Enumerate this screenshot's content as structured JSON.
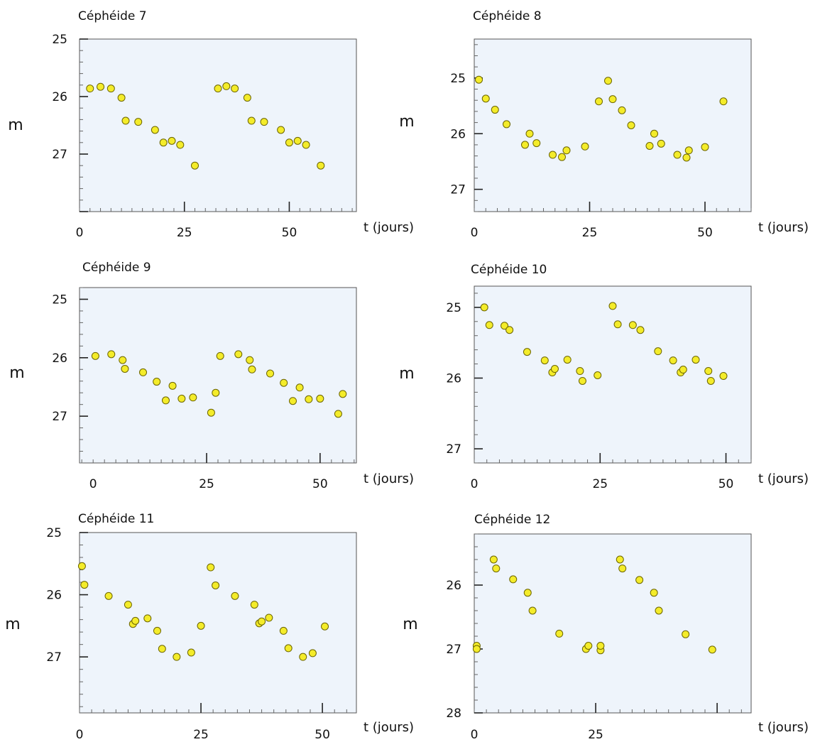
{
  "chart_data": [
    {
      "type": "scatter",
      "title": "Céphéide 7",
      "xlabel": "t (jours)",
      "ylabel": "m",
      "xlim": [
        0,
        66
      ],
      "ylim": [
        25,
        28
      ],
      "y_inverted": true,
      "x_ticks": [
        0,
        25,
        50
      ],
      "y_ticks": [
        25,
        26,
        27
      ],
      "grid": false,
      "points": [
        [
          2.5,
          25.86
        ],
        [
          5,
          25.83
        ],
        [
          7.5,
          25.86
        ],
        [
          10,
          26.02
        ],
        [
          11,
          26.42
        ],
        [
          14,
          26.44
        ],
        [
          18,
          26.58
        ],
        [
          20,
          26.8
        ],
        [
          22,
          26.77
        ],
        [
          24,
          26.84
        ],
        [
          27.5,
          27.2
        ],
        [
          33,
          25.86
        ],
        [
          35,
          25.82
        ],
        [
          37,
          25.86
        ],
        [
          40,
          26.02
        ],
        [
          41,
          26.42
        ],
        [
          44,
          26.44
        ],
        [
          48,
          26.58
        ],
        [
          50,
          26.8
        ],
        [
          52,
          26.77
        ],
        [
          54,
          26.84
        ],
        [
          57.5,
          27.2
        ]
      ]
    },
    {
      "type": "scatter",
      "title": "Céphéide 8",
      "xlabel": "t (jours)",
      "ylabel": "m",
      "xlim": [
        0,
        60
      ],
      "ylim": [
        24.3,
        27.4
      ],
      "y_inverted": true,
      "x_ticks": [
        0,
        25,
        50
      ],
      "y_ticks": [
        25,
        26,
        27
      ],
      "grid": false,
      "points": [
        [
          1,
          25.03
        ],
        [
          2.5,
          25.37
        ],
        [
          4.5,
          25.57
        ],
        [
          7,
          25.83
        ],
        [
          11,
          26.2
        ],
        [
          12,
          26.0
        ],
        [
          13.5,
          26.17
        ],
        [
          17,
          26.38
        ],
        [
          19,
          26.42
        ],
        [
          20,
          26.3
        ],
        [
          24,
          26.23
        ],
        [
          27,
          25.42
        ],
        [
          29,
          25.05
        ],
        [
          30,
          25.38
        ],
        [
          32,
          25.58
        ],
        [
          34,
          25.85
        ],
        [
          38,
          26.22
        ],
        [
          39,
          26.0
        ],
        [
          40.5,
          26.18
        ],
        [
          44,
          26.38
        ],
        [
          46,
          26.43
        ],
        [
          46.5,
          26.3
        ],
        [
          50,
          26.24
        ],
        [
          54,
          25.42
        ]
      ]
    },
    {
      "type": "scatter",
      "title": "Céphéide 9",
      "xlabel": "t (jours)",
      "ylabel": "m",
      "xlim": [
        -3,
        58
      ],
      "ylim": [
        24.8,
        27.8
      ],
      "y_inverted": true,
      "x_ticks": [
        0,
        25,
        50
      ],
      "y_ticks": [
        25,
        26,
        27
      ],
      "grid": false,
      "points": [
        [
          0.5,
          25.97
        ],
        [
          4,
          25.94
        ],
        [
          6.5,
          26.04
        ],
        [
          7,
          26.19
        ],
        [
          11,
          26.25
        ],
        [
          14,
          26.41
        ],
        [
          16,
          26.73
        ],
        [
          17.5,
          26.48
        ],
        [
          19.5,
          26.7
        ],
        [
          22,
          26.68
        ],
        [
          26,
          26.94
        ],
        [
          27,
          26.6
        ],
        [
          28,
          25.97
        ],
        [
          32,
          25.94
        ],
        [
          34.5,
          26.04
        ],
        [
          35,
          26.2
        ],
        [
          39,
          26.27
        ],
        [
          42,
          26.43
        ],
        [
          44,
          26.74
        ],
        [
          45.5,
          26.51
        ],
        [
          47.5,
          26.71
        ],
        [
          50,
          26.7
        ],
        [
          54,
          26.96
        ],
        [
          55,
          26.62
        ]
      ]
    },
    {
      "type": "scatter",
      "title": "Céphéide 10",
      "xlabel": "t (jours)",
      "ylabel": "m",
      "xlim": [
        0,
        55
      ],
      "ylim": [
        24.7,
        27.2
      ],
      "y_inverted": true,
      "x_ticks": [
        0,
        25,
        50
      ],
      "y_ticks": [
        25,
        26,
        27
      ],
      "grid": false,
      "points": [
        [
          2,
          25.0
        ],
        [
          3,
          25.25
        ],
        [
          6,
          25.26
        ],
        [
          7,
          25.32
        ],
        [
          10.5,
          25.63
        ],
        [
          14,
          25.75
        ],
        [
          15.5,
          25.92
        ],
        [
          16,
          25.87
        ],
        [
          18.5,
          25.74
        ],
        [
          21,
          25.9
        ],
        [
          21.5,
          26.04
        ],
        [
          24.5,
          25.96
        ],
        [
          27.5,
          24.98
        ],
        [
          28.5,
          25.24
        ],
        [
          31.5,
          25.25
        ],
        [
          33,
          25.32
        ],
        [
          36.5,
          25.62
        ],
        [
          39.5,
          25.75
        ],
        [
          41,
          25.92
        ],
        [
          41.5,
          25.88
        ],
        [
          44,
          25.74
        ],
        [
          46.5,
          25.9
        ],
        [
          47,
          26.04
        ],
        [
          49.5,
          25.97
        ]
      ]
    },
    {
      "type": "scatter",
      "title": "Céphéide 11",
      "xlabel": "t (jours)",
      "ylabel": "m",
      "xlim": [
        0,
        57
      ],
      "ylim": [
        25,
        27.9
      ],
      "y_inverted": true,
      "x_ticks": [
        0,
        25,
        50
      ],
      "y_ticks": [
        25,
        26,
        27
      ],
      "grid": false,
      "points": [
        [
          0.5,
          25.54
        ],
        [
          1,
          25.84
        ],
        [
          6,
          26.02
        ],
        [
          10,
          26.16
        ],
        [
          11,
          26.47
        ],
        [
          11.5,
          26.42
        ],
        [
          14,
          26.38
        ],
        [
          16,
          26.58
        ],
        [
          17,
          26.87
        ],
        [
          20,
          27.0
        ],
        [
          23,
          26.93
        ],
        [
          25,
          26.5
        ],
        [
          27,
          25.56
        ],
        [
          28,
          25.85
        ],
        [
          32,
          26.02
        ],
        [
          36,
          26.16
        ],
        [
          37,
          26.46
        ],
        [
          37.5,
          26.43
        ],
        [
          39,
          26.37
        ],
        [
          42,
          26.58
        ],
        [
          43,
          26.86
        ],
        [
          46,
          27.0
        ],
        [
          48,
          26.94
        ],
        [
          50.5,
          26.51
        ]
      ]
    },
    {
      "type": "scatter",
      "title": "Céphéide 12",
      "xlabel": "t (jours)",
      "ylabel": "m",
      "xlim": [
        0,
        57
      ],
      "ylim": [
        25.2,
        28
      ],
      "y_inverted": true,
      "x_ticks": [
        0,
        25
      ],
      "y_ticks": [
        26,
        27,
        28
      ],
      "grid": false,
      "points": [
        [
          0.5,
          26.95
        ],
        [
          0.5,
          27.0
        ],
        [
          4,
          25.6
        ],
        [
          4.5,
          25.74
        ],
        [
          8,
          25.91
        ],
        [
          11,
          26.12
        ],
        [
          12,
          26.4
        ],
        [
          17.5,
          26.76
        ],
        [
          23,
          27.0
        ],
        [
          23.5,
          26.95
        ],
        [
          26,
          27.02
        ],
        [
          26,
          26.95
        ],
        [
          30,
          25.6
        ],
        [
          30.5,
          25.74
        ],
        [
          34,
          25.92
        ],
        [
          37,
          26.12
        ],
        [
          38,
          26.4
        ],
        [
          43.5,
          26.77
        ],
        [
          49,
          27.01
        ]
      ]
    }
  ]
}
